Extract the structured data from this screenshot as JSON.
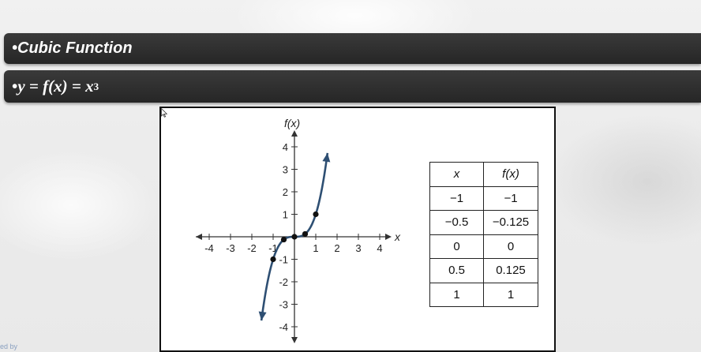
{
  "banners": {
    "title": "•Cubic Function",
    "equation_bullet": "•",
    "equation_text": "y = f(x) = x",
    "equation_exponent": "3"
  },
  "watermark": "ed by",
  "chart_data": {
    "type": "line",
    "xlabel": "x",
    "ylabel": "f(x)",
    "xlim": [
      -4,
      4
    ],
    "ylim": [
      -4,
      4
    ],
    "x_ticks": [
      "-4",
      "-3",
      "-2",
      "-1",
      "1",
      "2",
      "3",
      "4"
    ],
    "y_ticks": [
      "4",
      "3",
      "2",
      "1",
      "-1",
      "-2",
      "-3",
      "-4"
    ],
    "x_tick_values": [
      -4,
      -3,
      -2,
      -1,
      1,
      2,
      3,
      4
    ],
    "y_tick_values": [
      4,
      3,
      2,
      1,
      -1,
      -2,
      -3,
      -4
    ],
    "curve": {
      "function": "x^3",
      "x_range": [
        -1.55,
        1.55
      ],
      "color": "#2e4f73",
      "arrows": true
    },
    "points": [
      {
        "x": -1,
        "y": -1
      },
      {
        "x": -0.5,
        "y": -0.125
      },
      {
        "x": 0,
        "y": 0
      },
      {
        "x": 0.5,
        "y": 0.125
      },
      {
        "x": 1,
        "y": 1
      }
    ],
    "grid": false
  },
  "table": {
    "headers": [
      "x",
      "f(x)"
    ],
    "rows": [
      [
        "−1",
        "−1"
      ],
      [
        "−0.5",
        "−0.125"
      ],
      [
        "0",
        "0"
      ],
      [
        "0.5",
        "0.125"
      ],
      [
        "1",
        "1"
      ]
    ]
  },
  "icons": {
    "cursor": "mouse-pointer-icon"
  }
}
